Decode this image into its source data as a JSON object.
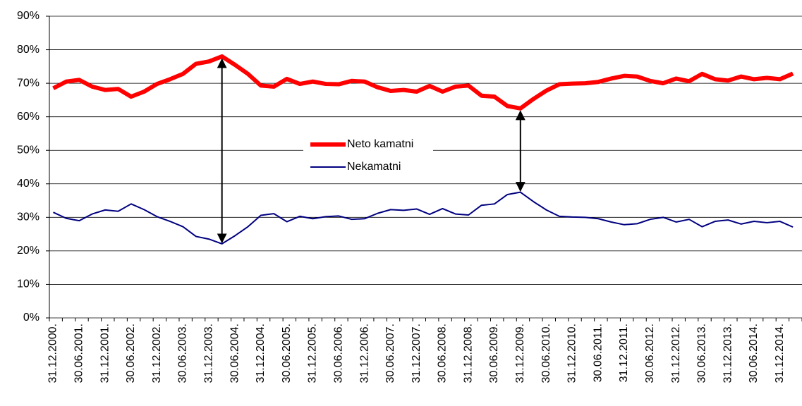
{
  "chart_data": {
    "type": "line",
    "categories": [
      "31.12.2000.",
      null,
      "30.06.2001.",
      null,
      "31.12.2001.",
      null,
      "30.06.2002.",
      null,
      "31.12.2002.",
      null,
      "30.06.2003.",
      null,
      "31.12.2003.",
      null,
      "30.06.2004.",
      null,
      "31.12.2004.",
      null,
      "30.06.2005.",
      null,
      "31.12.2005.",
      null,
      "30.06.2006.",
      null,
      "31.12.2006.",
      null,
      "30.06.2007.",
      null,
      "31.12.2007.",
      null,
      "30.06.2008.",
      null,
      "31.12.2008.",
      null,
      "30.06.2009.",
      null,
      "31.12.2009.",
      null,
      "30.06.2010.",
      null,
      "31.12.2010.",
      null,
      "30.06.2011.",
      null,
      "31.12.2011.",
      null,
      "30.06.2012.",
      null,
      "31.12.2012.",
      null,
      "30.06.2013.",
      null,
      "31.12.2013.",
      null,
      "30.06.2014.",
      null,
      "31.12.2014.",
      null
    ],
    "series": [
      {
        "name": "Neto kamatni",
        "color": "#ff0000",
        "values": [
          68.5,
          70.5,
          71,
          69,
          68,
          68.3,
          66,
          67.5,
          69.8,
          71.2,
          72.8,
          75.8,
          76.5,
          78,
          75.5,
          72.8,
          69.3,
          69,
          71.3,
          69.8,
          70.5,
          69.8,
          69.7,
          70.7,
          70.5,
          68.8,
          67.7,
          68,
          67.5,
          69.2,
          67.5,
          69,
          69.3,
          66.3,
          66,
          63.2,
          62.5,
          65.3,
          67.8,
          69.7,
          69.9,
          70,
          70.4,
          71.4,
          72.2,
          72,
          70.7,
          70,
          71.4,
          70.6,
          72.8,
          71.2,
          70.8,
          72,
          71.2,
          71.6,
          71.2,
          72.9
        ]
      },
      {
        "name": "Nekamatni",
        "color": "#000080",
        "values": [
          31.5,
          29.7,
          29,
          31,
          32.2,
          31.8,
          34,
          32.3,
          30.2,
          28.8,
          27.2,
          24.3,
          23.5,
          22.1,
          24.5,
          27.2,
          30.6,
          31.1,
          28.7,
          30.3,
          29.6,
          30.2,
          30.4,
          29.4,
          29.6,
          31.2,
          32.3,
          32.1,
          32.5,
          30.9,
          32.6,
          31,
          30.7,
          33.6,
          34,
          36.8,
          37.5,
          34.7,
          32.2,
          30.3,
          30.1,
          30,
          29.6,
          28.6,
          27.8,
          28.1,
          29.4,
          30,
          28.6,
          29.4,
          27.2,
          28.8,
          29.2,
          28,
          28.8,
          28.4,
          28.8,
          27.1
        ]
      }
    ],
    "ylim": [
      0,
      90
    ],
    "yticks": [
      {
        "value": 0,
        "label": "0%"
      },
      {
        "value": 10,
        "label": "10%"
      },
      {
        "value": 20,
        "label": "20%"
      },
      {
        "value": 30,
        "label": "30%"
      },
      {
        "value": 40,
        "label": "40%"
      },
      {
        "value": 50,
        "label": "50%"
      },
      {
        "value": 60,
        "label": "60%"
      },
      {
        "value": 70,
        "label": "70%"
      },
      {
        "value": 80,
        "label": "80%"
      },
      {
        "value": 90,
        "label": "90%"
      }
    ],
    "grid": true
  }
}
